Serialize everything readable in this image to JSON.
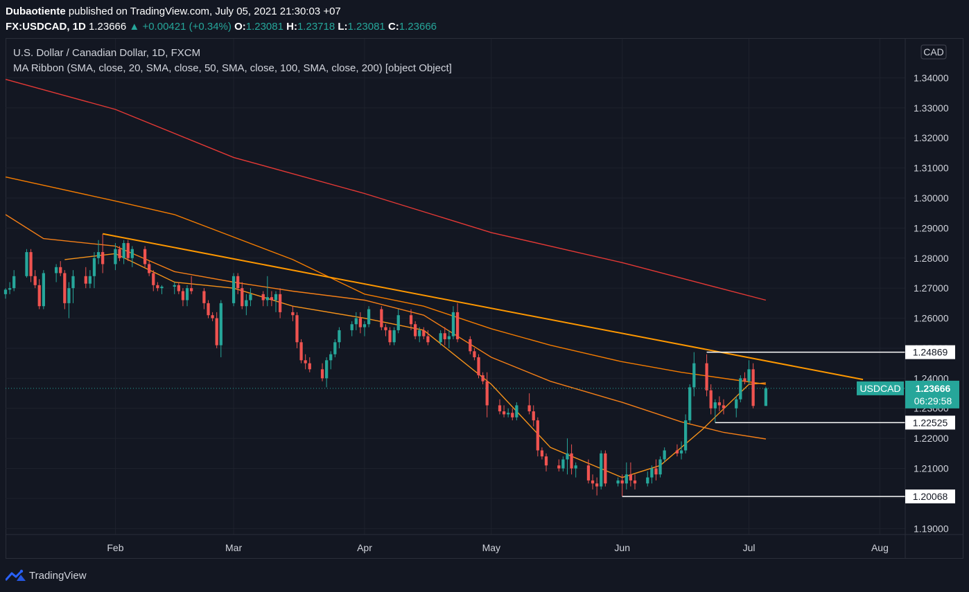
{
  "header": {
    "author": "Dubaotiente",
    "published_text": " published on TradingView.com, July 05, 2021 21:30:03 +07",
    "symbol": "FX:USDCAD, 1D",
    "last": "1.23666",
    "change": "+0.00421 (+0.34%)",
    "o_label": "O:",
    "o": "1.23081",
    "h_label": "H:",
    "h": "1.23718",
    "l_label": "L:",
    "l": "1.23081",
    "c_label": "C:",
    "c": "1.23666"
  },
  "legend": {
    "line1": "U.S. Dollar / Canadian Dollar, 1D, FXCM",
    "line2": "MA Ribbon (SMA, close, 20, SMA, close, 50, SMA, close, 100, SMA, close, 200) [object Object]"
  },
  "currency_badge": "CAD",
  "footer": {
    "brand": "TradingView"
  },
  "colors": {
    "up": "#26a69a",
    "down": "#ef5350",
    "ma20": "#f7931a",
    "ma50": "#f57f17",
    "ma100": "#f57c00",
    "ma200": "#e53935",
    "trend": "#ff9800"
  },
  "chart_data": {
    "type": "candlestick",
    "y_ticks": [
      "1.19000",
      "1.20000",
      "1.21000",
      "1.22000",
      "1.23000",
      "1.24000",
      "1.25000",
      "1.26000",
      "1.27000",
      "1.28000",
      "1.29000",
      "1.30000",
      "1.31000",
      "1.32000",
      "1.33000",
      "1.34000"
    ],
    "x_ticks": [
      "Feb",
      "Mar",
      "Apr",
      "May",
      "Jun",
      "Jul",
      "Aug"
    ],
    "x_tick_dates": [
      "2021-02-01",
      "2021-03-01",
      "2021-04-01",
      "2021-05-01",
      "2021-06-01",
      "2021-07-01",
      "2021-08-01"
    ],
    "x_range": [
      "2021-01-06",
      "2021-08-07"
    ],
    "y_range": [
      1.188,
      1.353
    ],
    "price_lines": [
      {
        "label": "1.24869",
        "price": 1.24869,
        "from": "2021-06-21"
      },
      {
        "label": "1.22525",
        "price": 1.22525,
        "from": "2021-06-23"
      },
      {
        "label": "1.20068",
        "price": 1.20068,
        "from": "2021-06-01"
      }
    ],
    "current": {
      "symbol": "USDCAD",
      "price": "1.23666",
      "countdown": "06:29:58",
      "value": 1.23666
    },
    "trendline": {
      "from": [
        "2021-01-29",
        1.2881
      ],
      "to": [
        "2021-07-28",
        1.2396
      ]
    },
    "ma_lines": [
      {
        "name": "SMA 200",
        "color": "#e53935",
        "points": [
          [
            "2021-01-06",
            1.3395
          ],
          [
            "2021-02-01",
            1.3295
          ],
          [
            "2021-03-01",
            1.3135
          ],
          [
            "2021-04-01",
            1.3015
          ],
          [
            "2021-05-01",
            1.2885
          ],
          [
            "2021-06-01",
            1.2785
          ],
          [
            "2021-06-20",
            1.2715
          ],
          [
            "2021-07-05",
            1.266
          ]
        ]
      },
      {
        "name": "SMA 100",
        "color": "#f57c00",
        "points": [
          [
            "2021-01-06",
            1.307
          ],
          [
            "2021-02-01",
            1.299
          ],
          [
            "2021-02-15",
            1.2945
          ],
          [
            "2021-03-01",
            1.287
          ],
          [
            "2021-03-15",
            1.2795
          ],
          [
            "2021-04-01",
            1.268
          ],
          [
            "2021-04-15",
            1.264
          ],
          [
            "2021-05-01",
            1.2565
          ],
          [
            "2021-05-15",
            1.251
          ],
          [
            "2021-06-01",
            1.2455
          ],
          [
            "2021-06-15",
            1.242
          ],
          [
            "2021-07-05",
            1.238
          ]
        ]
      },
      {
        "name": "SMA 50",
        "color": "#f57f17",
        "points": [
          [
            "2021-01-06",
            1.2945
          ],
          [
            "2021-01-15",
            1.2865
          ],
          [
            "2021-02-01",
            1.284
          ],
          [
            "2021-02-15",
            1.2755
          ],
          [
            "2021-03-01",
            1.272
          ],
          [
            "2021-03-15",
            1.269
          ],
          [
            "2021-04-01",
            1.266
          ],
          [
            "2021-04-15",
            1.261
          ],
          [
            "2021-05-01",
            1.247
          ],
          [
            "2021-05-15",
            1.239
          ],
          [
            "2021-06-01",
            1.232
          ],
          [
            "2021-06-15",
            1.2255
          ],
          [
            "2021-06-25",
            1.222
          ],
          [
            "2021-07-05",
            1.2198
          ]
        ]
      },
      {
        "name": "SMA 20",
        "color": "#f7931a",
        "points": [
          [
            "2021-01-20",
            1.2795
          ],
          [
            "2021-02-01",
            1.2815
          ],
          [
            "2021-02-15",
            1.272
          ],
          [
            "2021-03-01",
            1.27
          ],
          [
            "2021-03-15",
            1.264
          ],
          [
            "2021-04-01",
            1.26
          ],
          [
            "2021-04-15",
            1.256
          ],
          [
            "2021-05-01",
            1.238
          ],
          [
            "2021-05-15",
            1.217
          ],
          [
            "2021-06-01",
            1.207
          ],
          [
            "2021-06-10",
            1.211
          ],
          [
            "2021-06-20",
            1.223
          ],
          [
            "2021-07-01",
            1.238
          ],
          [
            "2021-07-05",
            1.2385
          ]
        ]
      }
    ],
    "candles": [
      [
        "2021-01-06",
        1.268,
        1.27,
        1.2665,
        1.2695
      ],
      [
        "2021-01-07",
        1.2695,
        1.272,
        1.268,
        1.27
      ],
      [
        "2021-01-08",
        1.27,
        1.276,
        1.269,
        1.274
      ],
      [
        "2021-01-11",
        1.274,
        1.283,
        1.2735,
        1.282
      ],
      [
        "2021-01-12",
        1.282,
        1.283,
        1.272,
        1.274
      ],
      [
        "2021-01-13",
        1.274,
        1.276,
        1.27,
        1.271
      ],
      [
        "2021-01-14",
        1.271,
        1.273,
        1.263,
        1.264
      ],
      [
        "2021-01-15",
        1.264,
        1.276,
        1.263,
        1.275
      ],
      [
        "2021-01-18",
        1.275,
        1.278,
        1.272,
        1.277
      ],
      [
        "2021-01-19",
        1.277,
        1.279,
        1.274,
        1.275
      ],
      [
        "2021-01-20",
        1.275,
        1.276,
        1.263,
        1.265
      ],
      [
        "2021-01-21",
        1.265,
        1.272,
        1.26,
        1.27
      ],
      [
        "2021-01-22",
        1.27,
        1.276,
        1.265,
        1.274
      ],
      [
        "2021-01-25",
        1.274,
        1.277,
        1.27,
        1.2715
      ],
      [
        "2021-01-26",
        1.2715,
        1.276,
        1.27,
        1.274
      ],
      [
        "2021-01-27",
        1.274,
        1.282,
        1.27,
        1.28
      ],
      [
        "2021-01-28",
        1.28,
        1.286,
        1.278,
        1.282
      ],
      [
        "2021-01-29",
        1.282,
        1.288,
        1.275,
        1.278
      ],
      [
        "2021-02-01",
        1.278,
        1.285,
        1.276,
        1.283
      ],
      [
        "2021-02-02",
        1.283,
        1.284,
        1.279,
        1.28
      ],
      [
        "2021-02-03",
        1.28,
        1.286,
        1.278,
        1.285
      ],
      [
        "2021-02-04",
        1.285,
        1.286,
        1.279,
        1.28
      ],
      [
        "2021-02-05",
        1.28,
        1.284,
        1.277,
        1.283
      ],
      [
        "2021-02-08",
        1.283,
        1.284,
        1.277,
        1.278
      ],
      [
        "2021-02-09",
        1.278,
        1.279,
        1.274,
        1.275
      ],
      [
        "2021-02-10",
        1.275,
        1.276,
        1.269,
        1.271
      ],
      [
        "2021-02-11",
        1.271,
        1.272,
        1.269,
        1.27
      ],
      [
        "2021-02-12",
        1.27,
        1.271,
        1.268,
        1.2705
      ],
      [
        "2021-02-15",
        1.2705,
        1.272,
        1.268,
        1.271
      ],
      [
        "2021-02-16",
        1.271,
        1.272,
        1.268,
        1.269
      ],
      [
        "2021-02-17",
        1.269,
        1.27,
        1.264,
        1.266
      ],
      [
        "2021-02-18",
        1.266,
        1.271,
        1.264,
        1.27
      ],
      [
        "2021-02-19",
        1.27,
        1.274,
        1.268,
        1.269
      ],
      [
        "2021-02-22",
        1.269,
        1.27,
        1.263,
        1.265
      ],
      [
        "2021-02-23",
        1.265,
        1.266,
        1.26,
        1.261
      ],
      [
        "2021-02-24",
        1.261,
        1.262,
        1.259,
        1.26
      ],
      [
        "2021-02-25",
        1.26,
        1.262,
        1.25,
        1.251
      ],
      [
        "2021-02-26",
        1.251,
        1.266,
        1.247,
        1.265
      ],
      [
        "2021-03-01",
        1.265,
        1.275,
        1.264,
        1.274
      ],
      [
        "2021-03-02",
        1.274,
        1.275,
        1.268,
        1.27
      ],
      [
        "2021-03-03",
        1.27,
        1.272,
        1.263,
        1.264
      ],
      [
        "2021-03-04",
        1.264,
        1.268,
        1.261,
        1.266
      ],
      [
        "2021-03-05",
        1.266,
        1.27,
        1.264,
        1.268
      ],
      [
        "2021-03-08",
        1.268,
        1.269,
        1.264,
        1.266
      ],
      [
        "2021-03-09",
        1.266,
        1.274,
        1.264,
        1.267
      ],
      [
        "2021-03-10",
        1.267,
        1.269,
        1.264,
        1.266
      ],
      [
        "2021-03-11",
        1.266,
        1.269,
        1.262,
        1.268
      ],
      [
        "2021-03-12",
        1.268,
        1.27,
        1.26,
        1.262
      ],
      [
        "2021-03-15",
        1.262,
        1.264,
        1.259,
        1.261
      ],
      [
        "2021-03-16",
        1.261,
        1.262,
        1.25,
        1.252
      ],
      [
        "2021-03-17",
        1.252,
        1.253,
        1.245,
        1.246
      ],
      [
        "2021-03-18",
        1.246,
        1.248,
        1.243,
        1.245
      ],
      [
        "2021-03-19",
        1.245,
        1.247,
        1.242,
        1.243
      ],
      [
        "2021-03-22",
        1.243,
        1.245,
        1.239,
        1.24
      ],
      [
        "2021-03-23",
        1.24,
        1.247,
        1.237,
        1.246
      ],
      [
        "2021-03-24",
        1.246,
        1.249,
        1.243,
        1.248
      ],
      [
        "2021-03-25",
        1.248,
        1.253,
        1.247,
        1.252
      ],
      [
        "2021-03-26",
        1.252,
        1.257,
        1.25,
        1.256
      ],
      [
        "2021-03-29",
        1.256,
        1.259,
        1.254,
        1.258
      ],
      [
        "2021-03-30",
        1.258,
        1.262,
        1.256,
        1.26
      ],
      [
        "2021-03-31",
        1.26,
        1.262,
        1.255,
        1.257
      ],
      [
        "2021-04-01",
        1.257,
        1.259,
        1.254,
        1.258
      ],
      [
        "2021-04-02",
        1.258,
        1.264,
        1.257,
        1.263
      ],
      [
        "2021-04-05",
        1.263,
        1.264,
        1.256,
        1.257
      ],
      [
        "2021-04-06",
        1.257,
        1.258,
        1.254,
        1.256
      ],
      [
        "2021-04-07",
        1.256,
        1.257,
        1.251,
        1.252
      ],
      [
        "2021-04-08",
        1.252,
        1.257,
        1.251,
        1.256
      ],
      [
        "2021-04-09",
        1.256,
        1.263,
        1.255,
        1.261
      ],
      [
        "2021-04-12",
        1.261,
        1.263,
        1.256,
        1.258
      ],
      [
        "2021-04-13",
        1.258,
        1.259,
        1.253,
        1.254
      ],
      [
        "2021-04-14",
        1.254,
        1.257,
        1.252,
        1.256
      ],
      [
        "2021-04-15",
        1.256,
        1.257,
        1.253,
        1.254
      ],
      [
        "2021-04-16",
        1.254,
        1.256,
        1.251,
        1.252
      ],
      [
        "2021-04-19",
        1.252,
        1.256,
        1.251,
        1.255
      ],
      [
        "2021-04-20",
        1.255,
        1.257,
        1.251,
        1.253
      ],
      [
        "2021-04-21",
        1.253,
        1.256,
        1.25,
        1.254
      ],
      [
        "2021-04-22",
        1.254,
        1.264,
        1.253,
        1.262
      ],
      [
        "2021-04-23",
        1.262,
        1.265,
        1.252,
        1.253
      ],
      [
        "2021-04-26",
        1.253,
        1.254,
        1.248,
        1.249
      ],
      [
        "2021-04-27",
        1.249,
        1.25,
        1.246,
        1.247
      ],
      [
        "2021-04-28",
        1.247,
        1.248,
        1.24,
        1.241
      ],
      [
        "2021-04-29",
        1.241,
        1.242,
        1.238,
        1.239
      ],
      [
        "2021-04-30",
        1.239,
        1.242,
        1.227,
        1.231
      ],
      [
        "2021-05-03",
        1.231,
        1.233,
        1.228,
        1.229
      ],
      [
        "2021-05-04",
        1.229,
        1.231,
        1.227,
        1.228
      ],
      [
        "2021-05-05",
        1.228,
        1.23,
        1.227,
        1.2285
      ],
      [
        "2021-05-06",
        1.2285,
        1.23,
        1.226,
        1.227
      ],
      [
        "2021-05-07",
        1.227,
        1.232,
        1.226,
        1.231
      ],
      [
        "2021-05-10",
        1.231,
        1.235,
        1.228,
        1.229
      ],
      [
        "2021-05-11",
        1.229,
        1.231,
        1.224,
        1.226
      ],
      [
        "2021-05-12",
        1.226,
        1.227,
        1.214,
        1.216
      ],
      [
        "2021-05-13",
        1.216,
        1.217,
        1.213,
        1.214
      ],
      [
        "2021-05-14",
        1.214,
        1.215,
        1.209,
        1.211
      ],
      [
        "2021-05-17",
        1.211,
        1.213,
        1.209,
        1.21
      ],
      [
        "2021-05-18",
        1.21,
        1.214,
        1.209,
        1.213
      ],
      [
        "2021-05-19",
        1.213,
        1.22,
        1.208,
        1.215
      ],
      [
        "2021-05-20",
        1.215,
        1.218,
        1.208,
        1.21
      ],
      [
        "2021-05-21",
        1.21,
        1.212,
        1.207,
        1.211
      ],
      [
        "2021-05-24",
        1.211,
        1.213,
        1.205,
        1.206
      ],
      [
        "2021-05-25",
        1.206,
        1.208,
        1.203,
        1.205
      ],
      [
        "2021-05-26",
        1.205,
        1.207,
        1.201,
        1.204
      ],
      [
        "2021-05-27",
        1.204,
        1.216,
        1.203,
        1.215
      ],
      [
        "2021-05-28",
        1.215,
        1.216,
        1.204,
        1.205
      ],
      [
        "2021-05-31",
        1.205,
        1.207,
        1.204,
        1.206
      ],
      [
        "2021-06-01",
        1.206,
        1.208,
        1.2007,
        1.205
      ],
      [
        "2021-06-02",
        1.205,
        1.212,
        1.203,
        1.208
      ],
      [
        "2021-06-03",
        1.208,
        1.212,
        1.204,
        1.206
      ],
      [
        "2021-06-04",
        1.206,
        1.208,
        1.203,
        1.205
      ],
      [
        "2021-06-07",
        1.205,
        1.209,
        1.204,
        1.207
      ],
      [
        "2021-06-08",
        1.207,
        1.211,
        1.205,
        1.21
      ],
      [
        "2021-06-09",
        1.21,
        1.213,
        1.206,
        1.208
      ],
      [
        "2021-06-10",
        1.208,
        1.214,
        1.207,
        1.213
      ],
      [
        "2021-06-11",
        1.213,
        1.217,
        1.212,
        1.216
      ],
      [
        "2021-06-14",
        1.216,
        1.218,
        1.214,
        1.215
      ],
      [
        "2021-06-15",
        1.215,
        1.219,
        1.213,
        1.216
      ],
      [
        "2021-06-16",
        1.216,
        1.228,
        1.215,
        1.226
      ],
      [
        "2021-06-17",
        1.226,
        1.238,
        1.225,
        1.237
      ],
      [
        "2021-06-18",
        1.237,
        1.2487,
        1.234,
        1.245
      ],
      [
        "2021-06-21",
        1.245,
        1.248,
        1.234,
        1.236
      ],
      [
        "2021-06-22",
        1.236,
        1.238,
        1.228,
        1.23
      ],
      [
        "2021-06-23",
        1.23,
        1.233,
        1.2253,
        1.232
      ],
      [
        "2021-06-24",
        1.232,
        1.234,
        1.229,
        1.231
      ],
      [
        "2021-06-25",
        1.231,
        1.233,
        1.228,
        1.23
      ],
      [
        "2021-06-28",
        1.23,
        1.234,
        1.227,
        1.233
      ],
      [
        "2021-06-29",
        1.233,
        1.241,
        1.232,
        1.24
      ],
      [
        "2021-06-30",
        1.24,
        1.242,
        1.238,
        1.239
      ],
      [
        "2021-07-01",
        1.239,
        1.246,
        1.238,
        1.243
      ],
      [
        "2021-07-02",
        1.243,
        1.245,
        1.23,
        1.2308
      ],
      [
        "2021-07-05",
        1.2308,
        1.2372,
        1.2308,
        1.2367
      ]
    ]
  }
}
